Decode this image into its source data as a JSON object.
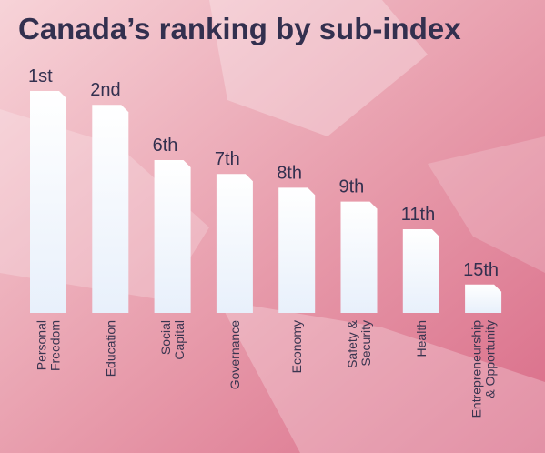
{
  "chart_data": {
    "type": "bar",
    "title": "Canada’s ranking by sub-index",
    "categories": [
      [
        "Personal",
        "Freedom"
      ],
      [
        "Education"
      ],
      [
        "Social",
        "Capital"
      ],
      [
        "Governance"
      ],
      [
        "Economy"
      ],
      [
        "Safety &",
        "Security"
      ],
      [
        "Health"
      ],
      [
        "Entrepreneurship",
        "& Opportunity"
      ]
    ],
    "ranks": [
      1,
      2,
      6,
      7,
      8,
      9,
      11,
      15
    ],
    "rank_labels": [
      "1st",
      "2nd",
      "6th",
      "7th",
      "8th",
      "9th",
      "11th",
      "15th"
    ],
    "bar_color": "#e8f0fb",
    "title_color": "#33304f",
    "label_color": "#3a3550",
    "background_colors": [
      "#f7d3d8",
      "#e79aaa",
      "#d96c88"
    ]
  }
}
